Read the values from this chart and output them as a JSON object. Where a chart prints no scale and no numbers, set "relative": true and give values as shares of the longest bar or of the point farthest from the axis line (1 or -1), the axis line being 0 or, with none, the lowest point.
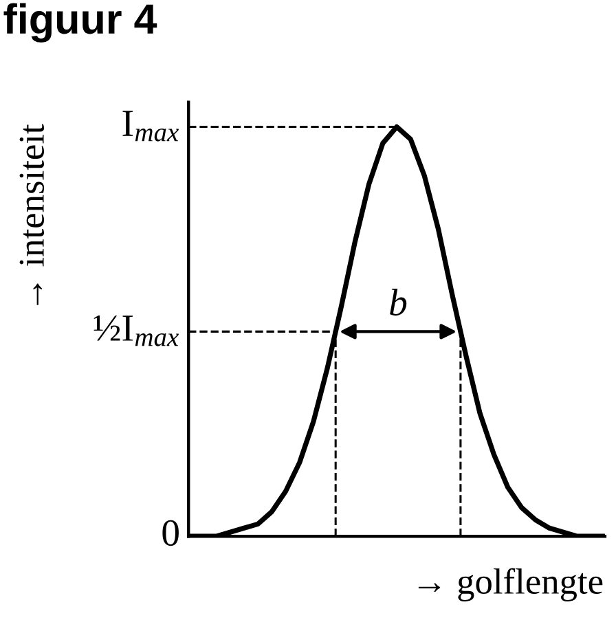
{
  "chart_data": {
    "type": "line",
    "title": "figuur 4",
    "xlabel": "→ golflengte",
    "ylabel": "→ intensiteit",
    "relative": true,
    "categories": [
      null,
      null,
      null,
      null,
      null,
      null,
      null,
      null,
      null,
      null,
      null,
      null,
      null,
      null,
      null,
      null,
      null,
      null,
      null,
      null,
      null,
      null,
      null,
      null,
      null,
      null,
      null,
      null,
      null,
      null,
      null
    ],
    "series": [
      {
        "color": "#000000",
        "values": [
          0.0,
          0.0,
          0.0,
          0.01,
          0.02,
          0.03,
          0.06,
          0.11,
          0.18,
          0.28,
          0.41,
          0.56,
          0.72,
          0.86,
          0.96,
          1.0,
          0.97,
          0.88,
          0.75,
          0.59,
          0.44,
          0.3,
          0.2,
          0.12,
          0.07,
          0.04,
          0.02,
          0.01,
          0.0,
          0.0,
          0.0
        ]
      }
    ],
    "ref_lines": [
      {
        "axis": "y",
        "value": 1,
        "label": "I$_{max}$",
        "line_style": "dashed"
      },
      {
        "axis": "y",
        "value": 0.5,
        "label": "½I$_{max}$",
        "line_style": "dashed"
      },
      {
        "axis": "y",
        "value": 0,
        "label": "0",
        "line_style": "solid"
      }
    ],
    "annotations": [
      "b"
    ],
    "grid": false,
    "marker": "none",
    "line_style": "solid"
  }
}
